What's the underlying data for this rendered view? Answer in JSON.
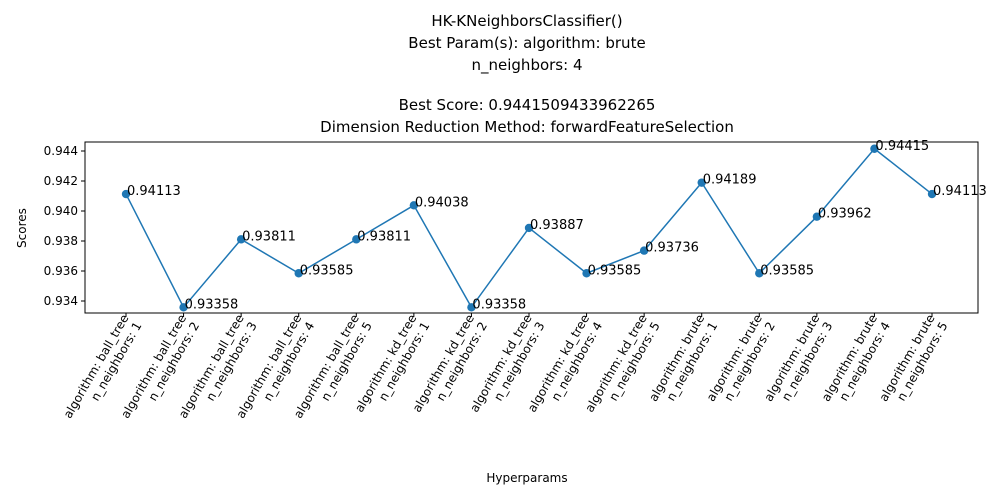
{
  "chart_data": {
    "type": "line",
    "title_lines": [
      "HK-KNeighborsClassifier()",
      "Best Param(s): algorithm: brute",
      "n_neighbors: 4",
      "",
      "Best Score: 0.9441509433962265",
      "Dimension Reduction Method: forwardFeatureSelection"
    ],
    "xlabel": "Hyperparams",
    "ylabel": "Scores",
    "categories": [
      [
        "algorithm: ball_tree",
        "n_neighbors: 1"
      ],
      [
        "algorithm: ball_tree",
        "n_neighbors: 2"
      ],
      [
        "algorithm: ball_tree",
        "n_neighbors: 3"
      ],
      [
        "algorithm: ball_tree",
        "n_neighbors: 4"
      ],
      [
        "algorithm: ball_tree",
        "n_neighbors: 5"
      ],
      [
        "algorithm: kd_tree",
        "n_neighbors: 1"
      ],
      [
        "algorithm: kd_tree",
        "n_neighbors: 2"
      ],
      [
        "algorithm: kd_tree",
        "n_neighbors: 3"
      ],
      [
        "algorithm: kd_tree",
        "n_neighbors: 4"
      ],
      [
        "algorithm: kd_tree",
        "n_neighbors: 5"
      ],
      [
        "algorithm: brute",
        "n_neighbors: 1"
      ],
      [
        "algorithm: brute",
        "n_neighbors: 2"
      ],
      [
        "algorithm: brute",
        "n_neighbors: 3"
      ],
      [
        "algorithm: brute",
        "n_neighbors: 4"
      ],
      [
        "algorithm: brute",
        "n_neighbors: 5"
      ]
    ],
    "values": [
      0.94113,
      0.93358,
      0.93811,
      0.93585,
      0.93811,
      0.94038,
      0.93358,
      0.93887,
      0.93585,
      0.93736,
      0.94189,
      0.93585,
      0.93962,
      0.94415,
      0.94113
    ],
    "value_labels": [
      "0.94113",
      "0.93358",
      "0.93811",
      "0.93585",
      "0.93811",
      "0.94038",
      "0.93358",
      "0.93887",
      "0.93585",
      "0.93736",
      "0.94189",
      "0.93585",
      "0.93962",
      "0.94415",
      "0.94113"
    ],
    "yticks": [
      "0.934",
      "0.936",
      "0.938",
      "0.940",
      "0.942",
      "0.944"
    ],
    "ylim": [
      0.9332,
      0.9446
    ],
    "grid": false,
    "legend": false,
    "line_color": "#1f77b4"
  }
}
